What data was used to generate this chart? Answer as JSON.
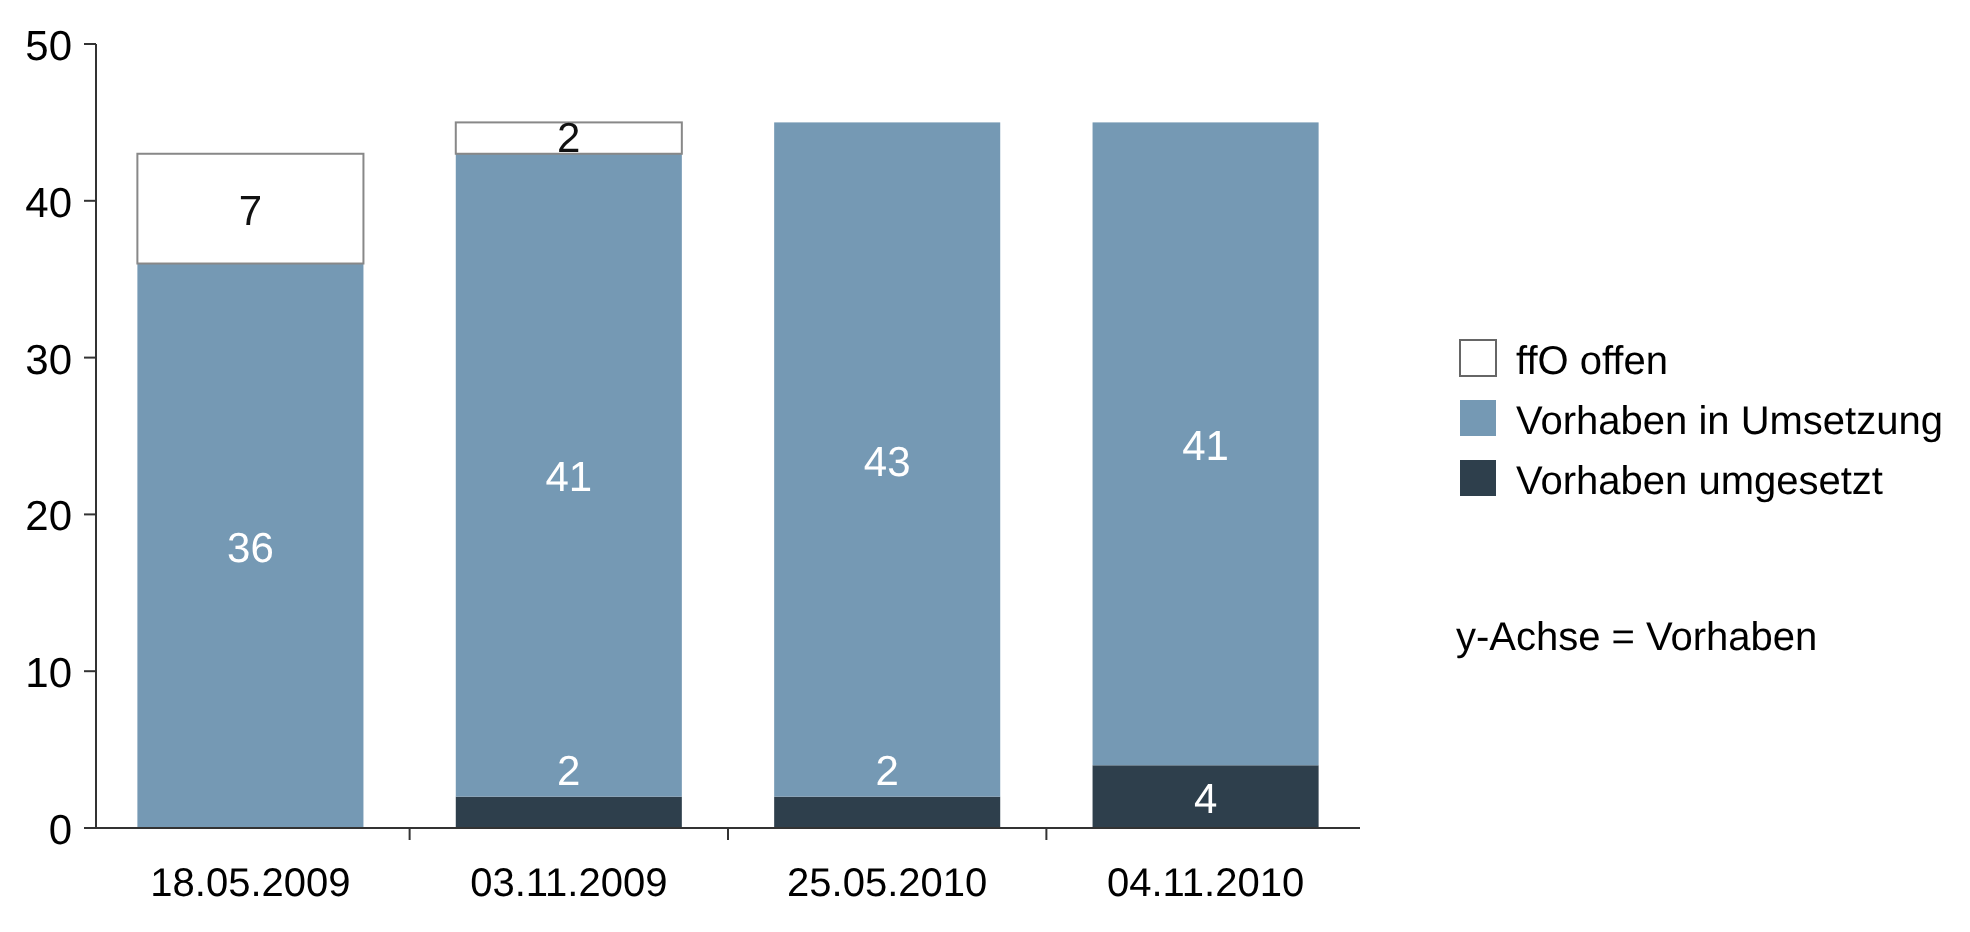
{
  "chart_data": {
    "type": "bar",
    "stacked": true,
    "categories": [
      "18.05.2009",
      "03.11.2009",
      "25.05.2010",
      "04.11.2010"
    ],
    "series": [
      {
        "name": "Vorhaben umgesetzt",
        "color": "#2e3f4c",
        "values": [
          0,
          2,
          2,
          4
        ],
        "value_labels": [
          null,
          "2",
          "2",
          "4"
        ]
      },
      {
        "name": "Vorhaben in Umsetzung",
        "color": "#7599b4",
        "values": [
          36,
          41,
          43,
          41
        ],
        "value_labels": [
          "36",
          "41",
          "43",
          "41"
        ]
      },
      {
        "name": "ffO offen",
        "color": "#ffffff",
        "values": [
          7,
          2,
          0,
          0
        ],
        "value_labels": [
          "7",
          "2",
          null,
          null
        ]
      }
    ],
    "ylim": [
      0,
      50
    ],
    "yticks": [
      0,
      10,
      20,
      30,
      40,
      50
    ],
    "legend": "right",
    "grid": false,
    "annotations": [
      "y-Achse = Vorhaben"
    ]
  }
}
